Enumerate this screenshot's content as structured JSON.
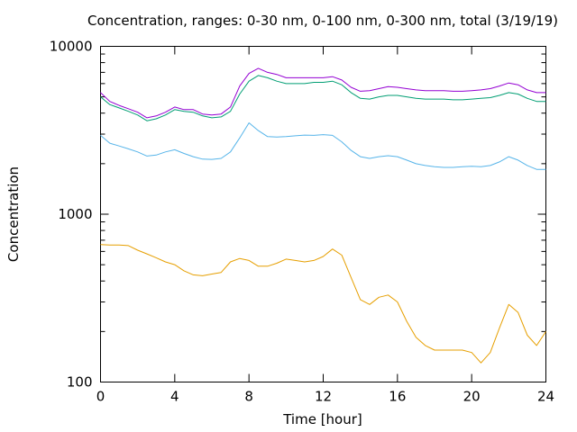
{
  "chart_data": {
    "type": "line",
    "title": "Concentration, ranges: 0-30 nm, 0-100 nm, 0-300 nm, total (3/19/19)",
    "xlabel": "Time [hour]",
    "ylabel": "Concentration",
    "xlim": [
      0,
      24
    ],
    "ylim": [
      100,
      10000
    ],
    "yscale": "log",
    "grid": false,
    "legend": "none",
    "x_ticks": [
      0,
      4,
      8,
      12,
      16,
      20,
      24
    ],
    "x_tick_labels": [
      "0",
      "4",
      "8",
      "12",
      "16",
      "20",
      "24"
    ],
    "y_ticks": [
      100,
      1000,
      10000
    ],
    "y_tick_labels": [
      "100",
      "1000",
      "10000"
    ],
    "x": [
      0,
      0.5,
      1,
      1.5,
      2,
      2.5,
      3,
      3.5,
      4,
      4.5,
      5,
      5.5,
      6,
      6.5,
      7,
      7.5,
      8,
      8.5,
      9,
      9.5,
      10,
      10.5,
      11,
      11.5,
      12,
      12.5,
      13,
      13.5,
      14,
      14.5,
      15,
      15.5,
      16,
      16.5,
      17,
      17.5,
      18,
      18.5,
      19,
      19.5,
      20,
      20.5,
      21,
      21.5,
      22,
      22.5,
      23,
      23.5,
      24
    ],
    "series": [
      {
        "color": "#e69f00",
        "values": [
          660,
          655,
          655,
          650,
          610,
          580,
          550,
          520,
          500,
          460,
          435,
          430,
          440,
          450,
          520,
          545,
          530,
          490,
          490,
          510,
          540,
          530,
          520,
          530,
          560,
          620,
          570,
          420,
          310,
          290,
          320,
          330,
          300,
          230,
          185,
          165,
          155,
          155,
          155,
          155,
          150,
          130,
          150,
          210,
          290,
          260,
          190,
          165,
          200
        ]
      },
      {
        "color": "#56b4e9",
        "values": [
          2950,
          2650,
          2550,
          2450,
          2350,
          2220,
          2250,
          2350,
          2420,
          2300,
          2200,
          2130,
          2120,
          2150,
          2350,
          2850,
          3500,
          3150,
          2900,
          2880,
          2900,
          2930,
          2960,
          2950,
          2980,
          2950,
          2700,
          2400,
          2200,
          2150,
          2200,
          2230,
          2200,
          2100,
          2000,
          1950,
          1920,
          1900,
          1900,
          1920,
          1930,
          1920,
          1950,
          2050,
          2200,
          2100,
          1950,
          1850,
          1850
        ]
      },
      {
        "color": "#009e73",
        "values": [
          5000,
          4500,
          4300,
          4100,
          3900,
          3600,
          3700,
          3900,
          4200,
          4100,
          4050,
          3850,
          3750,
          3800,
          4100,
          5200,
          6200,
          6700,
          6500,
          6200,
          6000,
          6000,
          6000,
          6100,
          6100,
          6200,
          5900,
          5300,
          4900,
          4850,
          5000,
          5100,
          5100,
          5000,
          4900,
          4850,
          4850,
          4850,
          4800,
          4800,
          4850,
          4900,
          4950,
          5100,
          5300,
          5200,
          4900,
          4700,
          4700
        ]
      },
      {
        "color": "#9400d3",
        "values": [
          5300,
          4700,
          4450,
          4250,
          4050,
          3750,
          3850,
          4050,
          4350,
          4200,
          4200,
          3950,
          3900,
          3950,
          4350,
          5800,
          6900,
          7400,
          7000,
          6800,
          6500,
          6500,
          6500,
          6500,
          6500,
          6600,
          6300,
          5700,
          5400,
          5450,
          5600,
          5750,
          5700,
          5600,
          5500,
          5450,
          5450,
          5450,
          5400,
          5400,
          5450,
          5500,
          5600,
          5800,
          6050,
          5900,
          5500,
          5300,
          5300
        ]
      }
    ]
  }
}
